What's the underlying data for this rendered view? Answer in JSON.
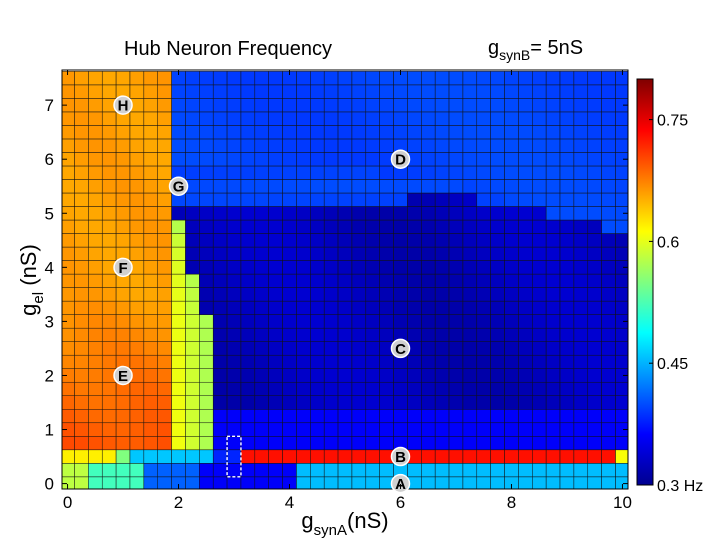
{
  "chart_data": {
    "type": "heatmap",
    "title": "Hub Neuron Frequency",
    "annotation": {
      "main": "g",
      "sub": "synB",
      "rest": "= 5nS"
    },
    "xlabel": {
      "main": "g",
      "sub": "synA",
      "rest": "(nS)"
    },
    "ylabel": {
      "main": "g",
      "sub": "el",
      "rest": " (nS)"
    },
    "xlim": [
      -0.1,
      10.1
    ],
    "ylim": [
      -0.1,
      7.65
    ],
    "x_ticks": [
      0,
      2,
      4,
      6,
      8,
      10
    ],
    "y_ticks": [
      0,
      1,
      2,
      3,
      4,
      5,
      6,
      7
    ],
    "grid_step": 0.25,
    "colorbar": {
      "colormap": "jet",
      "range": [
        0.3,
        0.8
      ],
      "unit": "Hz",
      "tick_values": [
        0.3,
        0.45,
        0.6,
        0.75
      ],
      "tick_labels": [
        "0.3 Hz",
        "0.45",
        "0.6",
        "0.75"
      ]
    },
    "regions_approx_hz": {
      "x0_1.5_y1.25_up": 0.67,
      "x1.5_2.5_y3_up": 0.58,
      "x2.5_10_y5_up": 0.39,
      "x2.5_10_y1.25_5": 0.33,
      "x2.5_10_y0.75_1.25": 0.36,
      "y0.5": 0.73,
      "y0_0.25": 0.45
    },
    "markers": [
      {
        "label": "A",
        "x": 6,
        "y": 0
      },
      {
        "label": "B",
        "x": 6,
        "y": 0.5
      },
      {
        "label": "C",
        "x": 6,
        "y": 2.5
      },
      {
        "label": "D",
        "x": 6,
        "y": 6
      },
      {
        "label": "E",
        "x": 1,
        "y": 2
      },
      {
        "label": "F",
        "x": 1,
        "y": 4
      },
      {
        "label": "G",
        "x": 2,
        "y": 5.5
      },
      {
        "label": "H",
        "x": 1,
        "y": 7
      }
    ],
    "highlight_box": {
      "x": [
        2.875,
        3.125
      ],
      "y": [
        0.125,
        0.875
      ]
    }
  }
}
